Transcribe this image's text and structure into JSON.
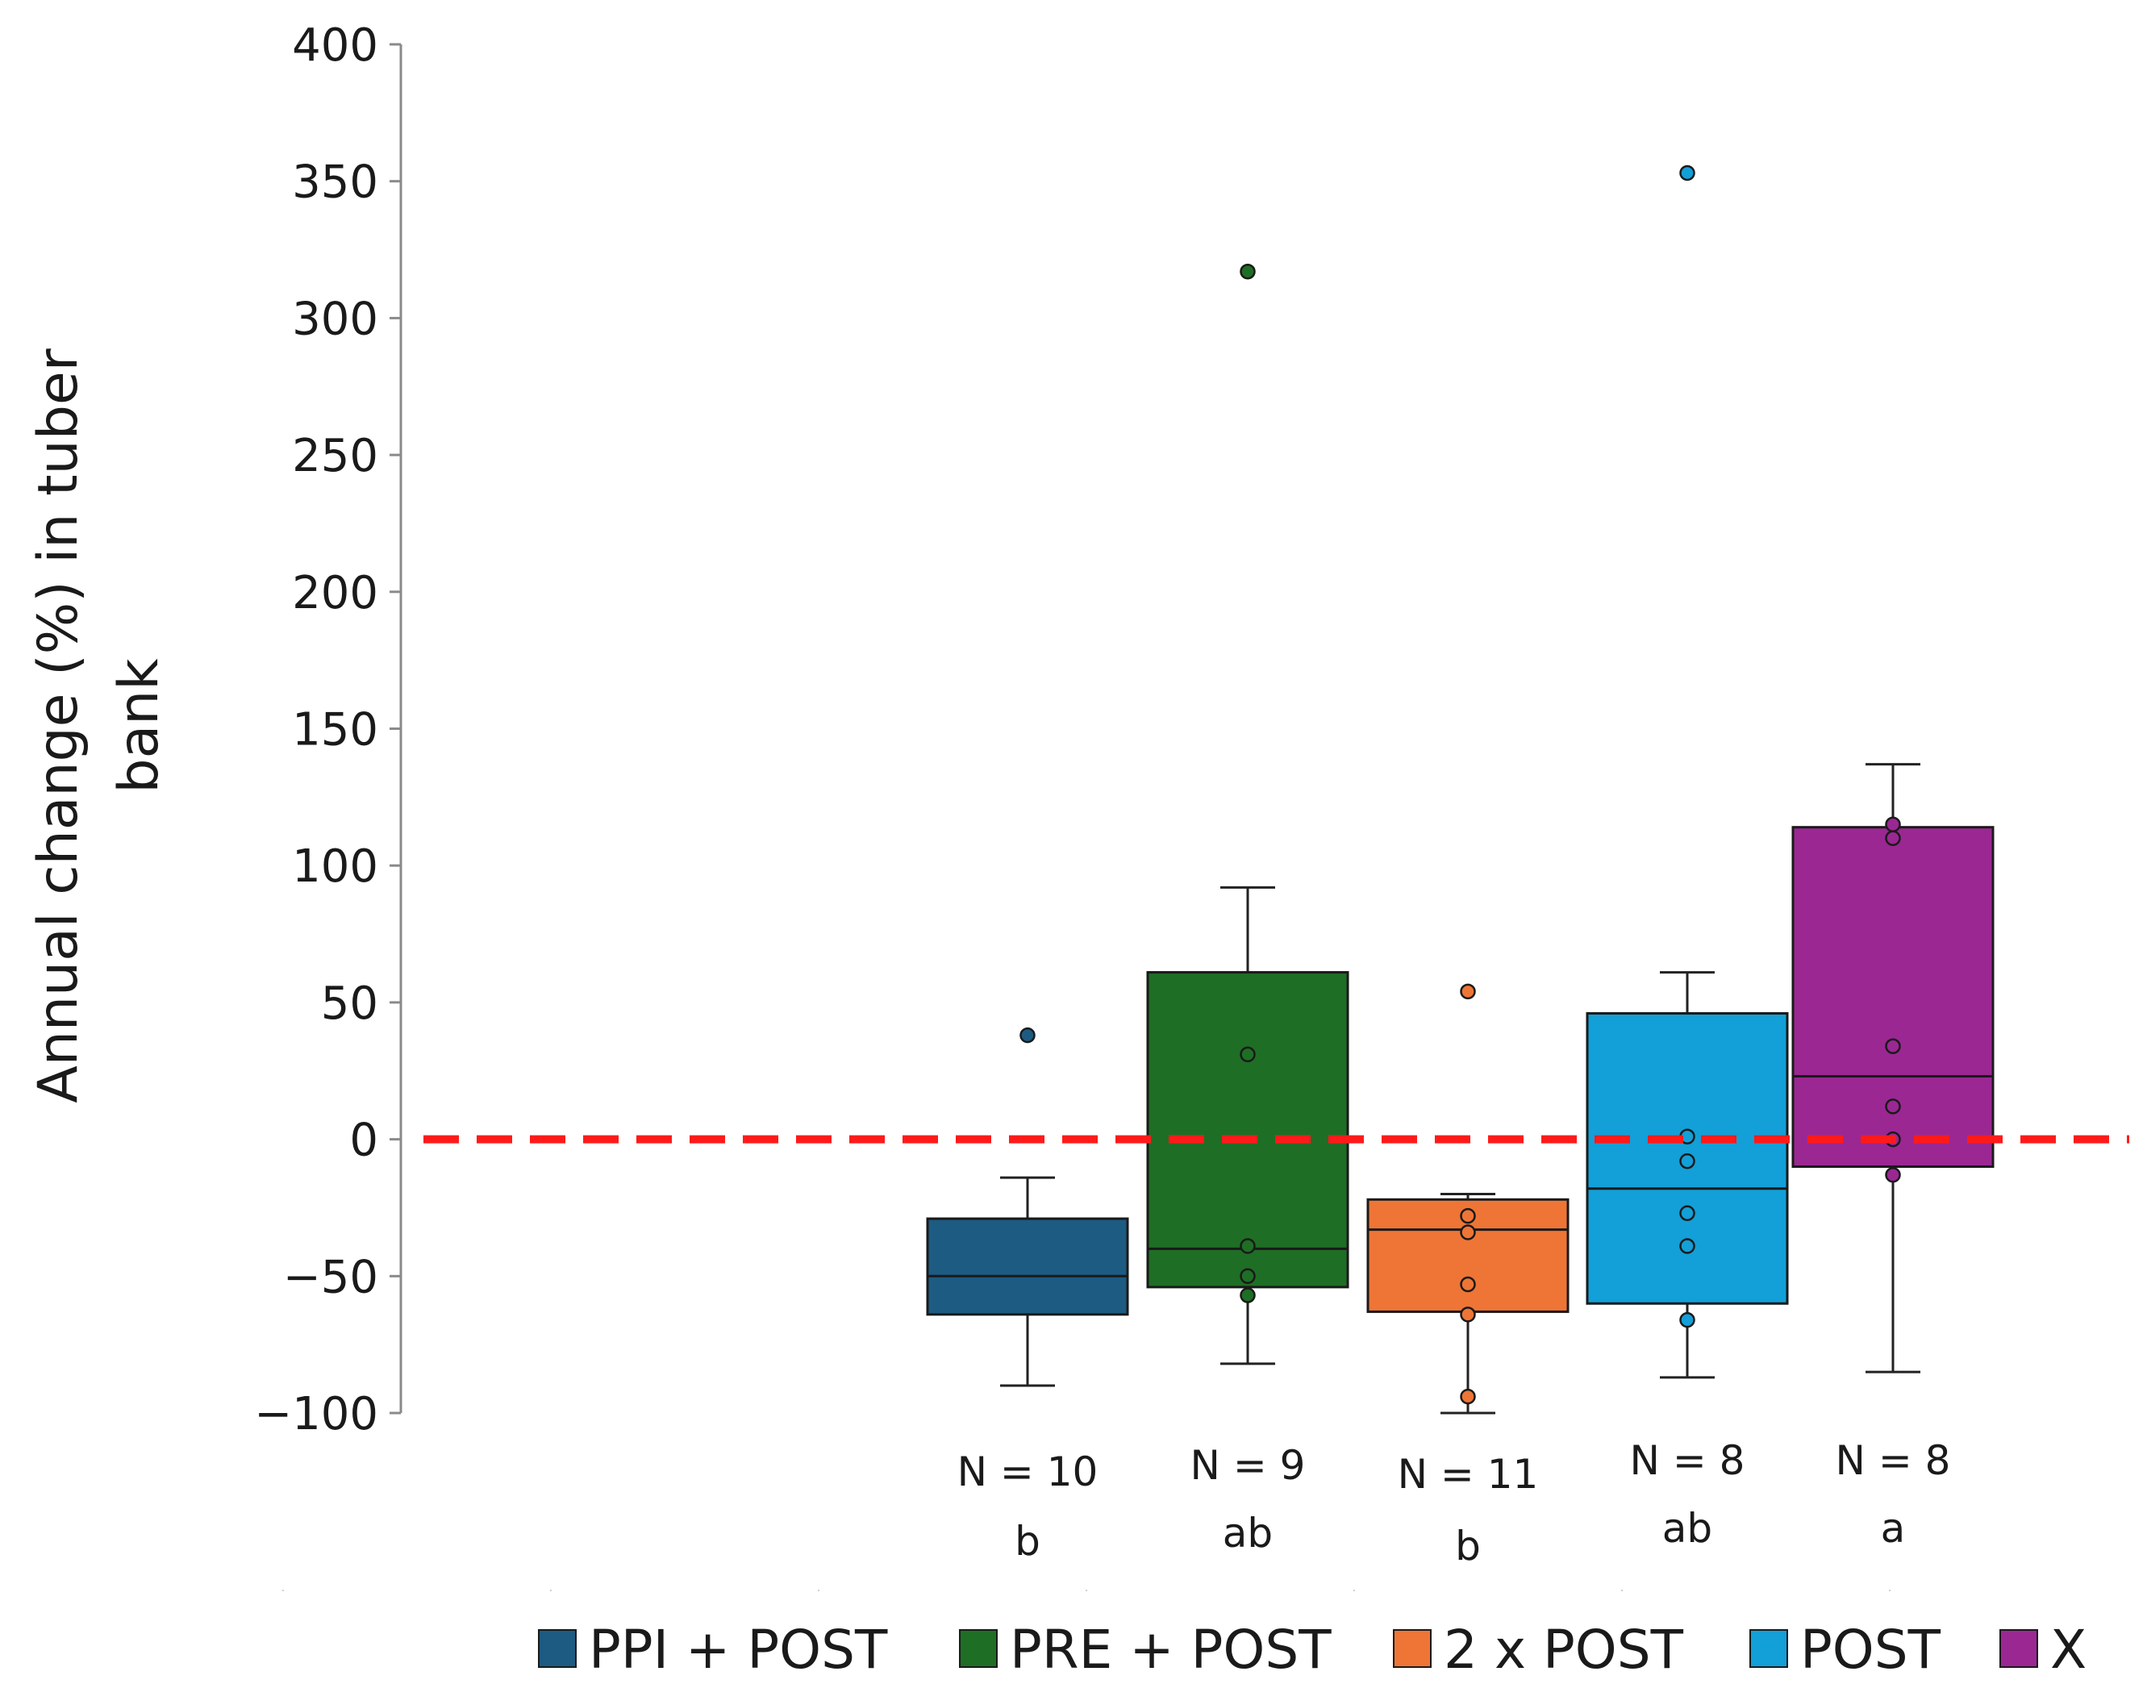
{
  "chart_data": {
    "type": "boxplot",
    "ylabel_lines": [
      "Annual change (%) in tuber",
      "bank"
    ],
    "xlabel": "",
    "ylim": [
      -100,
      400
    ],
    "yticks": [
      -100,
      -50,
      0,
      50,
      100,
      150,
      200,
      250,
      300,
      350,
      400
    ],
    "ytick_labels": [
      "−100",
      "−50",
      "0",
      "50",
      "100",
      "150",
      "200",
      "250",
      "300",
      "350",
      "400"
    ],
    "reference_line": {
      "y": 0,
      "color": "#ff1a1a",
      "style": "dashed"
    },
    "groups": [
      {
        "name": "PPI + POST",
        "color": "#1d5b82",
        "n_label": "N = 10",
        "letter": "b",
        "whisker_low": -90,
        "q1": -64,
        "median": -50,
        "q3": -29,
        "whisker_high": -14,
        "points": [
          38
        ]
      },
      {
        "name": "PRE + POST",
        "color": "#1f6e25",
        "n_label": "N = 9",
        "letter": "ab",
        "whisker_low": -82,
        "q1": -54,
        "median": -40,
        "q3": 61,
        "whisker_high": 92,
        "points": [
          317,
          31,
          -39,
          -50,
          -57
        ]
      },
      {
        "name": "2 x POST",
        "color": "#ee7535",
        "n_label": "N = 11",
        "letter": "b",
        "whisker_low": -100,
        "q1": -63,
        "median": -33,
        "q3": -22,
        "whisker_high": -20,
        "points": [
          54,
          -28,
          -34,
          -53,
          -64,
          -94
        ]
      },
      {
        "name": "POST",
        "color": "#139fd7",
        "n_label": "N = 8",
        "letter": "ab",
        "whisker_low": -87,
        "q1": -60,
        "median": -18,
        "q3": 46,
        "whisker_high": 61,
        "points": [
          353,
          1,
          -8,
          -27,
          -39,
          -66
        ]
      },
      {
        "name": "X",
        "color": "#9b2793",
        "n_label": "N = 8",
        "letter": "a",
        "whisker_low": -85,
        "q1": -10,
        "median": 23,
        "q3": 114,
        "whisker_high": 137,
        "points": [
          115,
          110,
          34,
          12,
          0,
          -13
        ]
      }
    ],
    "legend": [
      "PPI + POST",
      "PRE + POST",
      "2 x POST",
      "POST",
      "X"
    ],
    "legend_position": "bottom"
  }
}
